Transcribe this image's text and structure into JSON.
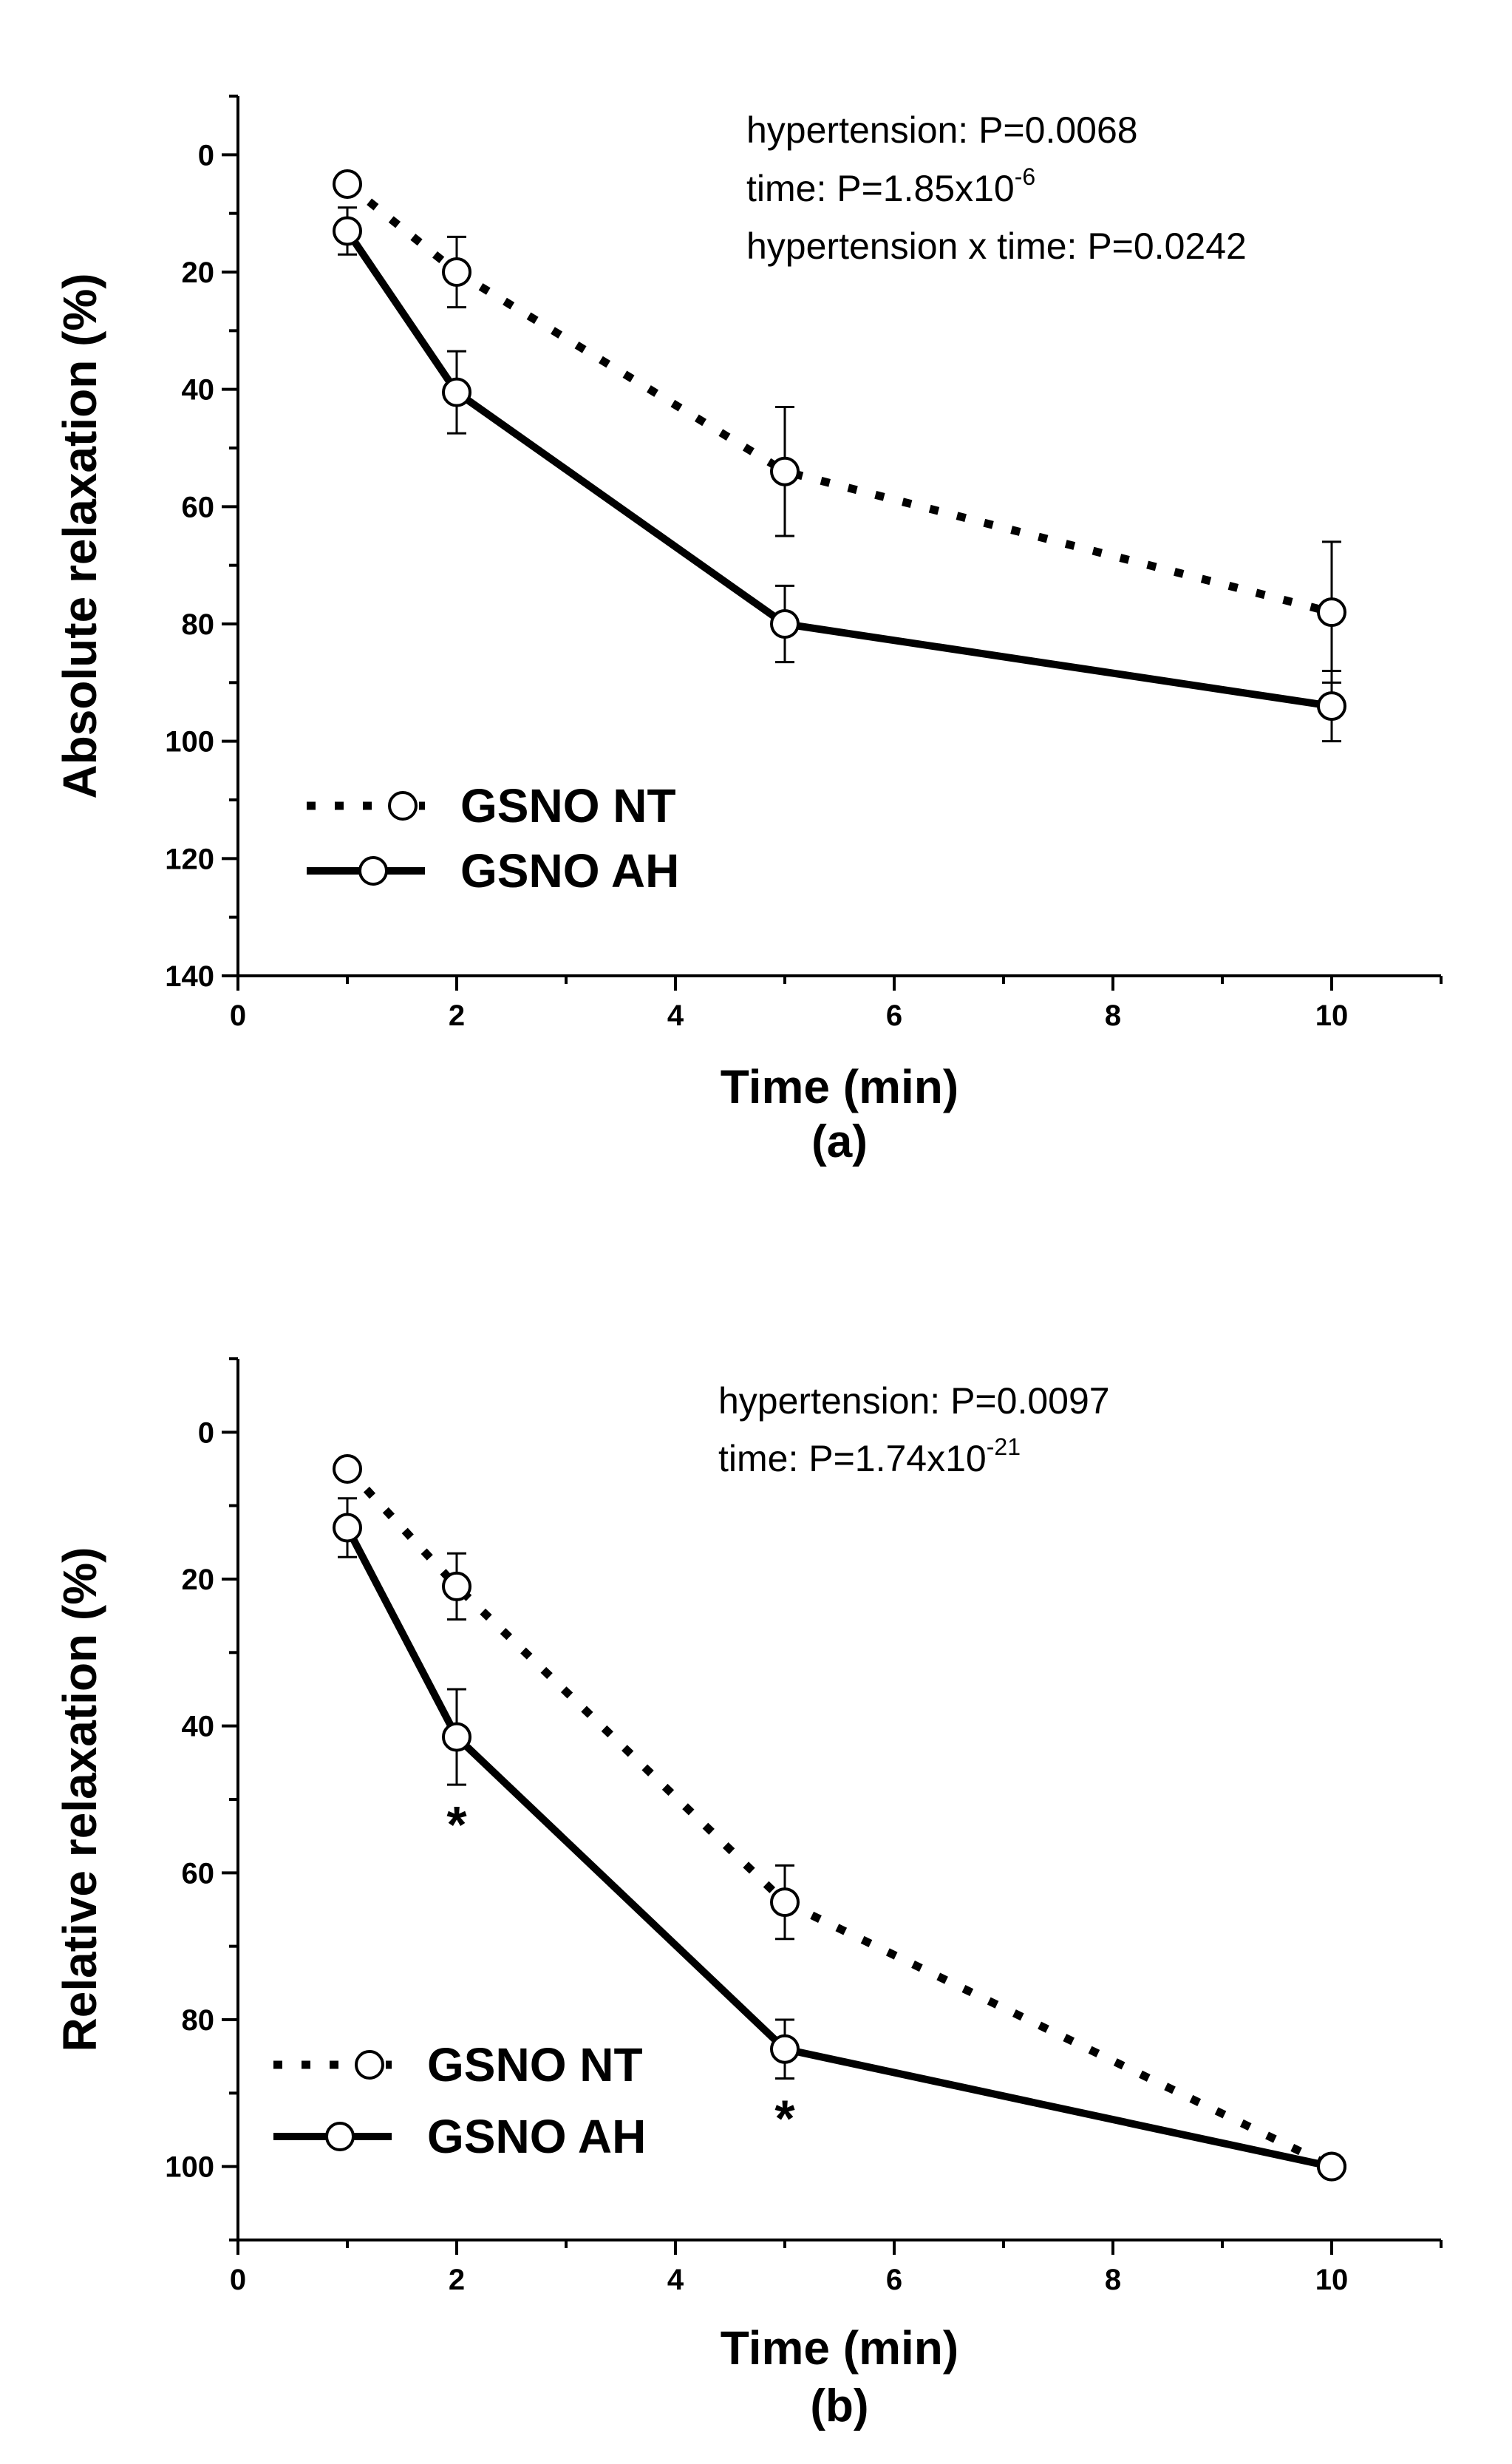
{
  "colors": {
    "ink": "#000000",
    "marker_fill": "#ffffff",
    "background": "#ffffff"
  },
  "chart_data": [
    {
      "type": "line",
      "panel_label": "(a)",
      "xlabel": "Time (min)",
      "ylabel": "Absolute relaxation (%)",
      "xlim": [
        0,
        11
      ],
      "ylim": [
        140,
        -10
      ],
      "y_inverted": true,
      "x_ticks": [
        0,
        2,
        4,
        6,
        8,
        10
      ],
      "x_tick_labels": [
        "0",
        "2",
        "4",
        "6",
        "8",
        "10"
      ],
      "y_ticks": [
        0,
        20,
        40,
        60,
        80,
        100,
        120,
        140
      ],
      "y_tick_labels": [
        "0",
        "20",
        "40",
        "60",
        "80",
        "100",
        "120",
        "140"
      ],
      "annotations": [
        {
          "text": "hypertension: P=0.0068"
        },
        {
          "text": "time: P=1.85x10",
          "sup": "-6"
        },
        {
          "text": "hypertension x time: P=0.0242"
        }
      ],
      "legend": {
        "placement": "bottom-left",
        "entries": [
          "GSNO NT",
          "GSNO AH"
        ]
      },
      "series": [
        {
          "name": "GSNO NT",
          "line_style": "dotted",
          "x": [
            1,
            2,
            5,
            10
          ],
          "y": [
            5,
            20,
            54,
            78
          ],
          "err": [
            1,
            6,
            11,
            12
          ]
        },
        {
          "name": "GSNO AH",
          "line_style": "solid",
          "x": [
            1,
            2,
            5,
            10
          ],
          "y": [
            13,
            40.5,
            80,
            94
          ],
          "err": [
            4,
            7,
            6.5,
            6
          ]
        }
      ],
      "significance": []
    },
    {
      "type": "line",
      "panel_label": "(b)",
      "xlabel": "Time (min)",
      "ylabel": "Relative relaxation (%)",
      "xlim": [
        0,
        11
      ],
      "ylim": [
        110,
        -10
      ],
      "y_inverted": true,
      "x_ticks": [
        0,
        2,
        4,
        6,
        8,
        10
      ],
      "x_tick_labels": [
        "0",
        "2",
        "4",
        "6",
        "8",
        "10"
      ],
      "y_ticks": [
        0,
        20,
        40,
        60,
        80,
        100
      ],
      "y_tick_labels": [
        "0",
        "20",
        "40",
        "60",
        "80",
        "100"
      ],
      "annotations": [
        {
          "text": "hypertension: P=0.0097"
        },
        {
          "text": "time: P=1.74x10",
          "sup": "-21"
        }
      ],
      "legend": {
        "placement": "bottom-left",
        "entries": [
          "GSNO NT",
          "GSNO AH"
        ]
      },
      "series": [
        {
          "name": "GSNO NT",
          "line_style": "dotted",
          "x": [
            1,
            2,
            5,
            10
          ],
          "y": [
            5,
            21,
            64,
            100
          ],
          "err": [
            0.5,
            4.5,
            5,
            0
          ]
        },
        {
          "name": "GSNO AH",
          "line_style": "solid",
          "x": [
            1,
            2,
            5,
            10
          ],
          "y": [
            13,
            41.5,
            84,
            100
          ],
          "err": [
            4,
            6.5,
            4,
            0
          ]
        }
      ],
      "significance": [
        {
          "x": 2,
          "label": "*"
        },
        {
          "x": 5,
          "label": "*"
        }
      ]
    }
  ]
}
